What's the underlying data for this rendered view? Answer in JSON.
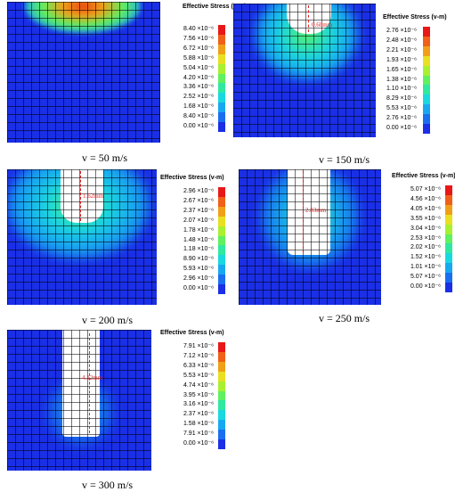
{
  "legend_title": "Effective Stress (v-m)",
  "colors": [
    "#1a2fe6",
    "#1a6ff0",
    "#18a8f0",
    "#1ad8e0",
    "#30e8a0",
    "#60f060",
    "#a8f030",
    "#e8e020",
    "#f0a018",
    "#f06018",
    "#e81818"
  ],
  "panels": [
    {
      "caption": "v = 50 m/s",
      "depth_label": "",
      "ticks": [
        "8.40 ×10⁻⁶",
        "7.56 ×10⁻⁶",
        "6.72 ×10⁻⁶",
        "5.88 ×10⁻⁶",
        "5.04 ×10⁻⁶",
        "4.20 ×10⁻⁶",
        "3.36 ×10⁻⁶",
        "2.52 ×10⁻⁶",
        "1.68 ×10⁻⁶",
        "8.40 ×10⁻⁶",
        "0.00 ×10⁻⁶"
      ]
    },
    {
      "caption": "v = 150 m/s",
      "depth_label": "0.60mm",
      "ticks": [
        "2.76 ×10⁻⁶",
        "2.48 ×10⁻⁶",
        "2.21 ×10⁻⁶",
        "1.93 ×10⁻⁶",
        "1.65 ×10⁻⁶",
        "1.38 ×10⁻⁶",
        "1.10 ×10⁻⁶",
        "8.29 ×10⁻⁶",
        "5.53 ×10⁻⁶",
        "2.76 ×10⁻⁶",
        "0.00 ×10⁻⁶"
      ]
    },
    {
      "caption": "v = 200 m/s",
      "depth_label": "1.62mm",
      "ticks": [
        "2.96 ×10⁻⁶",
        "2.67 ×10⁻⁶",
        "2.37 ×10⁻⁶",
        "2.07 ×10⁻⁶",
        "1.78 ×10⁻⁶",
        "1.48 ×10⁻⁶",
        "1.18 ×10⁻⁶",
        "8.90 ×10⁻⁶",
        "5.93 ×10⁻⁶",
        "2.96 ×10⁻⁶",
        "0.00 ×10⁻⁶"
      ]
    },
    {
      "caption": "v = 250 m/s",
      "depth_label": "2.83mm",
      "ticks": [
        "5.07 ×10⁻⁶",
        "4.56 ×10⁻⁶",
        "4.05 ×10⁻⁶",
        "3.55 ×10⁻⁶",
        "3.04 ×10⁻⁶",
        "2.53 ×10⁻⁶",
        "2.02 ×10⁻⁶",
        "1.52 ×10⁻⁶",
        "1.01 ×10⁻⁶",
        "5.07 ×10⁻⁶",
        "0.00 ×10⁻⁶"
      ]
    },
    {
      "caption": "v = 300 m/s",
      "depth_label": "4.12mm",
      "ticks": [
        "7.91 ×10⁻⁶",
        "7.12 ×10⁻⁶",
        "6.33 ×10⁻⁶",
        "5.53 ×10⁻⁶",
        "4.74 ×10⁻⁶",
        "3.95 ×10⁻⁶",
        "3.16 ×10⁻⁶",
        "2.37 ×10⁻⁶",
        "1.58 ×10⁻⁶",
        "7.91 ×10⁻⁶",
        "0.00 ×10⁻⁶"
      ]
    }
  ]
}
